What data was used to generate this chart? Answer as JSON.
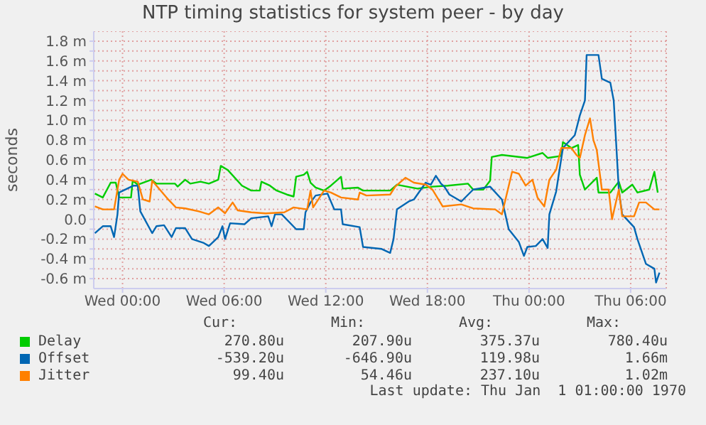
{
  "chart_data": {
    "type": "line",
    "title": "NTP timing statistics for system peer - by day",
    "ylabel": "seconds",
    "xlim": [
      "1969-12-30T22:18",
      "1970-01-01T08:06"
    ],
    "ylim": [
      -0.7,
      1.9
    ],
    "xticks": [
      {
        "value": "1969-12-31T00:00",
        "label": "Wed 00:00"
      },
      {
        "value": "1969-12-31T06:00",
        "label": "Wed 06:00"
      },
      {
        "value": "1969-12-31T12:00",
        "label": "Wed 12:00"
      },
      {
        "value": "1969-12-31T18:00",
        "label": "Wed 18:00"
      },
      {
        "value": "1970-01-01T00:00",
        "label": "Thu 00:00"
      },
      {
        "value": "1970-01-01T06:00",
        "label": "Thu 06:00"
      }
    ],
    "yticks": [
      {
        "value": -0.6,
        "label": "-0.6 m"
      },
      {
        "value": -0.5,
        "label": null
      },
      {
        "value": -0.4,
        "label": "-0.4 m"
      },
      {
        "value": -0.3,
        "label": null
      },
      {
        "value": -0.2,
        "label": "-0.2 m"
      },
      {
        "value": -0.1,
        "label": null
      },
      {
        "value": 0,
        "label": "0.0"
      },
      {
        "value": 0.1,
        "label": null
      },
      {
        "value": 0.2,
        "label": "0.2 m"
      },
      {
        "value": 0.3,
        "label": null
      },
      {
        "value": 0.4,
        "label": "0.4 m"
      },
      {
        "value": 0.5,
        "label": null
      },
      {
        "value": 0.6,
        "label": "0.6 m"
      },
      {
        "value": 0.7,
        "label": null
      },
      {
        "value": 0.8,
        "label": "0.8 m"
      },
      {
        "value": 0.9,
        "label": null
      },
      {
        "value": 1.0,
        "label": "1.0 m"
      },
      {
        "value": 1.1,
        "label": null
      },
      {
        "value": 1.2,
        "label": "1.2 m"
      },
      {
        "value": 1.3,
        "label": null
      },
      {
        "value": 1.4,
        "label": "1.4 m"
      },
      {
        "value": 1.5,
        "label": null
      },
      {
        "value": 1.6,
        "label": "1.6 m"
      },
      {
        "value": 1.7,
        "label": null
      },
      {
        "value": 1.8,
        "label": "1.8 m"
      }
    ],
    "grid": true,
    "legend": "bottom",
    "marker": "none",
    "line_style": "solid",
    "series": [
      {
        "name": "Delay",
        "color": "#00cc00",
        "x": [
          "1969-12-30T22:22",
          "1969-12-30T22:50",
          "1969-12-30T23:18",
          "1969-12-30T23:36",
          "1969-12-30T23:48",
          "1969-12-31T00:30",
          "1969-12-31T00:36",
          "1969-12-31T00:54",
          "1969-12-31T01:42",
          "1969-12-31T02:00",
          "1969-12-31T03:06",
          "1969-12-31T03:15",
          "1969-12-31T03:42",
          "1969-12-31T04:00",
          "1969-12-31T04:36",
          "1969-12-31T05:06",
          "1969-12-31T05:39",
          "1969-12-31T05:48",
          "1969-12-31T06:12",
          "1969-12-31T07:03",
          "1969-12-31T07:36",
          "1969-12-31T08:06",
          "1969-12-31T08:12",
          "1969-12-31T08:42",
          "1969-12-31T09:06",
          "1969-12-31T09:42",
          "1969-12-31T10:06",
          "1969-12-31T10:15",
          "1969-12-31T10:42",
          "1969-12-31T10:54",
          "1969-12-31T11:06",
          "1969-12-31T11:24",
          "1969-12-31T11:54",
          "1969-12-31T12:18",
          "1969-12-31T12:54",
          "1969-12-31T13:00",
          "1969-12-31T13:54",
          "1969-12-31T14:12",
          "1969-12-31T15:48",
          "1969-12-31T16:12",
          "1969-12-31T17:24",
          "1969-12-31T18:18",
          "1969-12-31T19:12",
          "1969-12-31T20:24",
          "1969-12-31T20:42",
          "1969-12-31T21:18",
          "1969-12-31T21:42",
          "1969-12-31T21:48",
          "1969-12-31T22:24",
          "1969-12-31T23:54",
          "1970-01-01T00:48",
          "1970-01-01T01:06",
          "1970-01-01T01:54",
          "1970-01-01T02:00",
          "1970-01-01T02:30",
          "1970-01-01T02:54",
          "1970-01-01T03:00",
          "1970-01-01T03:18",
          "1970-01-01T04:00",
          "1970-01-01T04:06",
          "1970-01-01T04:48",
          "1970-01-01T05:18",
          "1970-01-01T05:30",
          "1970-01-01T06:06",
          "1970-01-01T06:24",
          "1970-01-01T07:06",
          "1970-01-01T07:24",
          "1970-01-01T07:36"
        ],
        "values": [
          0.26,
          0.22,
          0.37,
          0.37,
          0.22,
          0.22,
          0.39,
          0.35,
          0.4,
          0.36,
          0.36,
          0.33,
          0.4,
          0.36,
          0.38,
          0.36,
          0.4,
          0.54,
          0.5,
          0.34,
          0.29,
          0.29,
          0.38,
          0.34,
          0.29,
          0.25,
          0.23,
          0.43,
          0.45,
          0.48,
          0.37,
          0.32,
          0.29,
          0.34,
          0.43,
          0.31,
          0.32,
          0.29,
          0.29,
          0.35,
          0.31,
          0.33,
          0.34,
          0.36,
          0.3,
          0.3,
          0.39,
          0.63,
          0.65,
          0.62,
          0.67,
          0.62,
          0.64,
          0.78,
          0.72,
          0.75,
          0.45,
          0.3,
          0.42,
          0.27,
          0.27,
          0.38,
          0.27,
          0.35,
          0.27,
          0.3,
          0.48,
          0.27
        ]
      },
      {
        "name": "Offset",
        "color": "#0066b3",
        "x": [
          "1969-12-30T22:22",
          "1969-12-30T22:50",
          "1969-12-30T23:18",
          "1969-12-30T23:30",
          "1969-12-30T23:42",
          "1969-12-30T23:48",
          "1969-12-31T00:39",
          "1969-12-31T00:54",
          "1969-12-31T01:03",
          "1969-12-31T01:45",
          "1969-12-31T02:00",
          "1969-12-31T02:27",
          "1969-12-31T02:54",
          "1969-12-31T03:09",
          "1969-12-31T03:42",
          "1969-12-31T04:06",
          "1969-12-31T04:48",
          "1969-12-31T05:06",
          "1969-12-31T05:39",
          "1969-12-31T05:54",
          "1969-12-31T06:03",
          "1969-12-31T06:21",
          "1969-12-31T07:12",
          "1969-12-31T07:36",
          "1969-12-31T08:36",
          "1969-12-31T08:48",
          "1969-12-31T09:00",
          "1969-12-31T09:24",
          "1969-12-31T10:15",
          "1969-12-31T10:42",
          "1969-12-31T10:48",
          "1969-12-31T11:06",
          "1969-12-31T11:24",
          "1969-12-31T12:06",
          "1969-12-31T12:30",
          "1969-12-31T12:54",
          "1969-12-31T13:00",
          "1969-12-31T14:00",
          "1969-12-31T14:12",
          "1969-12-31T15:18",
          "1969-12-31T15:48",
          "1969-12-31T16:00",
          "1969-12-31T16:12",
          "1969-12-31T16:54",
          "1969-12-31T17:12",
          "1969-12-31T17:54",
          "1969-12-31T18:12",
          "1969-12-31T18:30",
          "1969-12-31T18:48",
          "1969-12-31T19:00",
          "1969-12-31T19:18",
          "1969-12-31T20:00",
          "1969-12-31T20:42",
          "1969-12-31T21:42",
          "1969-12-31T22:24",
          "1969-12-31T22:48",
          "1969-12-31T23:24",
          "1969-12-31T23:42",
          "1969-12-31T23:54",
          "1970-01-01T00:24",
          "1970-01-01T00:48",
          "1970-01-01T01:06",
          "1970-01-01T01:12",
          "1970-01-01T01:36",
          "1970-01-01T02:00",
          "1970-01-01T02:42",
          "1970-01-01T03:00",
          "1970-01-01T03:18",
          "1970-01-01T03:24",
          "1970-01-01T04:06",
          "1970-01-01T04:18",
          "1970-01-01T04:48",
          "1970-01-01T05:00",
          "1970-01-01T05:18",
          "1970-01-01T05:30",
          "1970-01-01T06:12",
          "1970-01-01T06:24",
          "1970-01-01T06:54",
          "1970-01-01T07:24",
          "1970-01-01T07:30",
          "1970-01-01T07:42"
        ],
        "values": [
          -0.14,
          -0.07,
          -0.07,
          -0.18,
          0.05,
          0.27,
          0.34,
          0.34,
          0.08,
          -0.14,
          -0.07,
          -0.06,
          -0.18,
          -0.09,
          -0.09,
          -0.2,
          -0.24,
          -0.27,
          -0.18,
          -0.07,
          -0.2,
          -0.04,
          -0.05,
          0.01,
          0.03,
          -0.07,
          0.05,
          0.05,
          -0.1,
          -0.1,
          0.07,
          0.17,
          0.24,
          0.26,
          0.1,
          0.1,
          -0.05,
          -0.08,
          -0.28,
          -0.3,
          -0.34,
          -0.2,
          0.1,
          0.18,
          0.2,
          0.37,
          0.35,
          0.44,
          0.36,
          0.33,
          0.25,
          0.18,
          0.3,
          0.33,
          0.2,
          -0.1,
          -0.23,
          -0.37,
          -0.28,
          -0.27,
          -0.2,
          -0.29,
          0.05,
          0.28,
          0.72,
          0.85,
          1.05,
          1.2,
          1.66,
          1.66,
          1.42,
          1.38,
          1.2,
          0.3,
          0.05,
          -0.08,
          -0.2,
          -0.45,
          -0.5,
          -0.64,
          -0.54
        ]
      },
      {
        "name": "Jitter",
        "color": "#ff8000",
        "x": [
          "1969-12-30T22:22",
          "1969-12-30T22:50",
          "1969-12-30T23:30",
          "1969-12-30T23:48",
          "1969-12-31T00:00",
          "1969-12-31T00:21",
          "1969-12-31T00:54",
          "1969-12-31T01:12",
          "1969-12-31T01:36",
          "1969-12-31T01:45",
          "1969-12-31T02:12",
          "1969-12-31T02:42",
          "1969-12-31T03:09",
          "1969-12-31T03:42",
          "1969-12-31T04:30",
          "1969-12-31T05:06",
          "1969-12-31T05:39",
          "1969-12-31T06:03",
          "1969-12-31T06:30",
          "1969-12-31T06:48",
          "1969-12-31T07:36",
          "1969-12-31T08:27",
          "1969-12-31T09:33",
          "1969-12-31T10:06",
          "1969-12-31T10:54",
          "1969-12-31T11:06",
          "1969-12-31T11:15",
          "1969-12-31T11:54",
          "1969-12-31T12:18",
          "1969-12-31T12:54",
          "1969-12-31T13:54",
          "1969-12-31T14:00",
          "1969-12-31T14:24",
          "1969-12-31T15:48",
          "1969-12-31T16:06",
          "1969-12-31T16:42",
          "1969-12-31T17:12",
          "1969-12-31T17:54",
          "1969-12-31T18:18",
          "1969-12-31T18:54",
          "1969-12-31T20:00",
          "1969-12-31T20:42",
          "1969-12-31T22:00",
          "1969-12-31T22:24",
          "1969-12-31T23:00",
          "1969-12-31T23:24",
          "1969-12-31T23:48",
          "1970-01-01T00:12",
          "1970-01-01T00:30",
          "1970-01-01T00:54",
          "1970-01-01T01:12",
          "1970-01-01T01:36",
          "1970-01-01T01:54",
          "1970-01-01T02:30",
          "1970-01-01T02:48",
          "1970-01-01T03:00",
          "1970-01-01T03:18",
          "1970-01-01T03:36",
          "1970-01-01T03:48",
          "1970-01-01T04:00",
          "1970-01-01T04:18",
          "1970-01-01T04:42",
          "1970-01-01T04:54",
          "1970-01-01T05:18",
          "1970-01-01T05:30",
          "1970-01-01T06:12",
          "1970-01-01T06:30",
          "1970-01-01T06:54",
          "1970-01-01T07:24",
          "1970-01-01T07:42"
        ],
        "values": [
          0.13,
          0.1,
          0.1,
          0.4,
          0.46,
          0.4,
          0.38,
          0.2,
          0.18,
          0.39,
          0.3,
          0.2,
          0.12,
          0.11,
          0.08,
          0.05,
          0.12,
          0.06,
          0.17,
          0.09,
          0.07,
          0.06,
          0.07,
          0.12,
          0.1,
          0.29,
          0.12,
          0.29,
          0.27,
          0.22,
          0.2,
          0.27,
          0.24,
          0.25,
          0.33,
          0.42,
          0.37,
          0.35,
          0.3,
          0.13,
          0.15,
          0.11,
          0.1,
          0.05,
          0.48,
          0.46,
          0.34,
          0.4,
          0.22,
          0.13,
          0.4,
          0.5,
          0.72,
          0.72,
          0.65,
          0.62,
          0.85,
          1.02,
          0.8,
          0.7,
          0.3,
          0.3,
          0.0,
          0.3,
          0.03,
          0.03,
          0.17,
          0.17,
          0.1,
          0.1
        ]
      }
    ],
    "annotations": [
      "Cur:",
      "Min:",
      "Avg:",
      "Max:",
      "270.80u",
      "207.90u",
      "375.37u",
      "780.40u",
      "-539.20u",
      "-646.90u",
      "119.98u",
      "1.66m",
      "99.40u",
      "54.46u",
      "237.10u",
      "1.02m",
      "Last update: Thu Jan  1 01:00:00 1970"
    ]
  }
}
